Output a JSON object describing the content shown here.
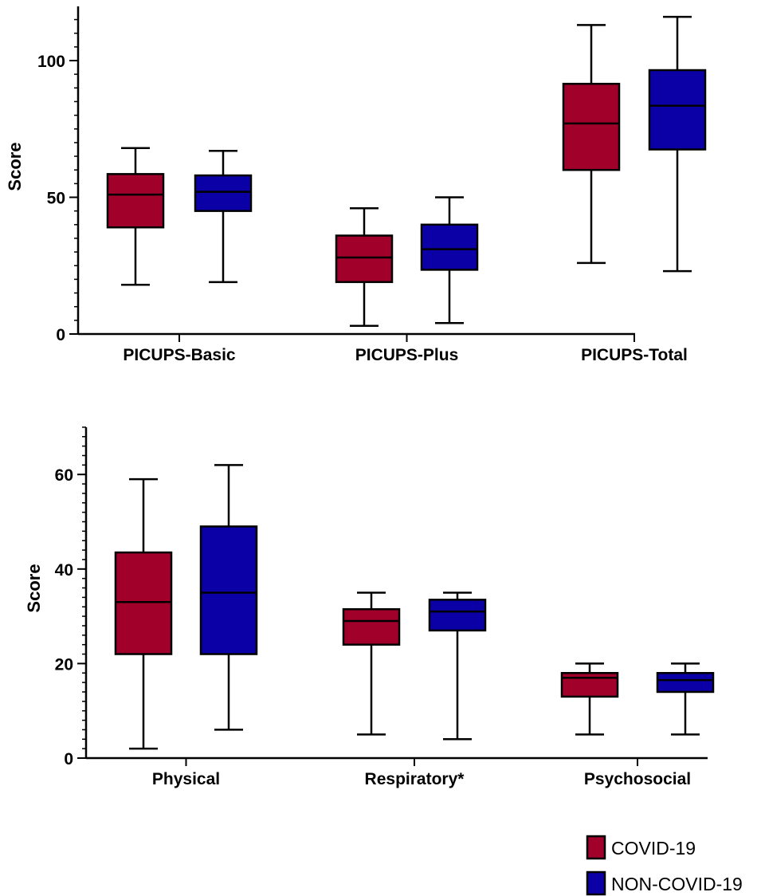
{
  "chart_data": [
    {
      "type": "box",
      "ylabel": "Score",
      "ylim": [
        0,
        120
      ],
      "yticks": [
        0,
        50,
        100
      ],
      "categories": [
        "PICUPS-Basic",
        "PICUPS-Plus",
        "PICUPS-Total"
      ],
      "series": [
        {
          "name": "COVID-19",
          "color": "#a0002a",
          "boxes": [
            {
              "min": 18,
              "q1": 39,
              "median": 51,
              "q3": 58.5,
              "max": 68
            },
            {
              "min": 3,
              "q1": 19,
              "median": 28,
              "q3": 36,
              "max": 46
            },
            {
              "min": 26,
              "q1": 60,
              "median": 77,
              "q3": 91.5,
              "max": 113
            }
          ]
        },
        {
          "name": "NON-COVID-19",
          "color": "#0a00a6",
          "boxes": [
            {
              "min": 19,
              "q1": 45,
              "median": 52,
              "q3": 58,
              "max": 67
            },
            {
              "min": 4,
              "q1": 23.5,
              "median": 31,
              "q3": 40,
              "max": 50
            },
            {
              "min": 23,
              "q1": 67.5,
              "median": 83.5,
              "q3": 96.5,
              "max": 116
            }
          ]
        }
      ]
    },
    {
      "type": "box",
      "ylabel": "Score",
      "ylim": [
        0,
        70
      ],
      "yticks": [
        0,
        20,
        40,
        60
      ],
      "categories": [
        "Physical",
        "Respiratory*",
        "Psychosocial"
      ],
      "series": [
        {
          "name": "COVID-19",
          "color": "#a0002a",
          "boxes": [
            {
              "min": 2,
              "q1": 22,
              "median": 33,
              "q3": 43.5,
              "max": 59
            },
            {
              "min": 5,
              "q1": 24,
              "median": 29,
              "q3": 31.5,
              "max": 35
            },
            {
              "min": 5,
              "q1": 13,
              "median": 17,
              "q3": 18,
              "max": 20
            }
          ]
        },
        {
          "name": "NON-COVID-19",
          "color": "#0a00a6",
          "boxes": [
            {
              "min": 6,
              "q1": 22,
              "median": 35,
              "q3": 49,
              "max": 62
            },
            {
              "min": 4,
              "q1": 27,
              "median": 31,
              "q3": 33.5,
              "max": 35
            },
            {
              "min": 5,
              "q1": 14,
              "median": 16.5,
              "q3": 18,
              "max": 20
            }
          ]
        }
      ]
    }
  ],
  "legend": [
    {
      "label": "COVID-19",
      "color": "#a0002a"
    },
    {
      "label": "NON-COVID-19",
      "color": "#0a00a6"
    }
  ]
}
